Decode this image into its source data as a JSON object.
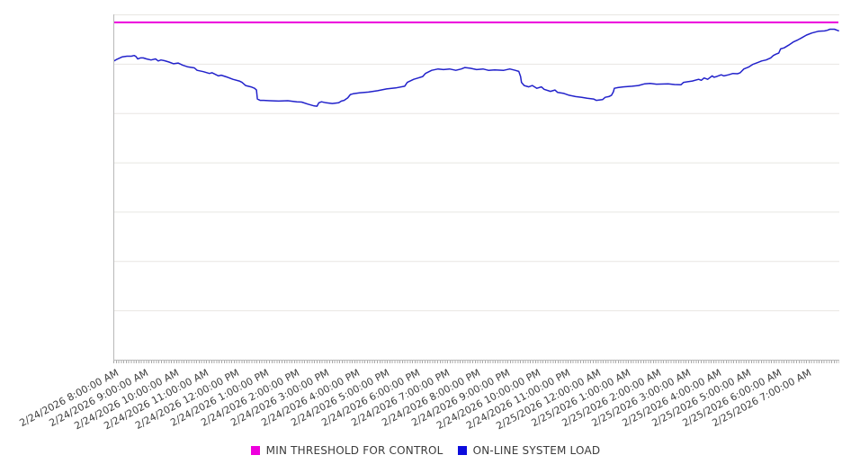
{
  "chart": {
    "background": "#ffffff",
    "grid_color": "#e8e6e2",
    "axis_color": "#b9b9b9",
    "tick_color": "#a8a8a8",
    "label_color": "#3d3d3d",
    "y_axis_labels_visible": false
  },
  "legend": {
    "items": [
      {
        "label": "MIN THRESHOLD FOR CONTROL",
        "color": "#ee00dd"
      },
      {
        "label": "ON-LINE SYSTEM LOAD",
        "color": "#0d0ddd"
      }
    ]
  },
  "chart_data": {
    "type": "line",
    "title": "",
    "xlabel": "",
    "ylabel": "",
    "x_axis_hours_span": 24.1,
    "x_minor_tick_minutes": 5,
    "y_gridline_count": 7,
    "value_unit_note": "no y-axis tick labels are shown in the chart; values are percent of plot height (0 = axis bottom, 100 = plot top)",
    "x_tick_labels": [
      "2/24/2026 8:00:00 AM",
      "2/24/2026 9:00:00 AM",
      "2/24/2026 10:00:00 AM",
      "2/24/2026 11:00:00 AM",
      "2/24/2026 12:00:00 PM",
      "2/24/2026 1:00:00 PM",
      "2/24/2026 2:00:00 PM",
      "2/24/2026 3:00:00 PM",
      "2/24/2026 4:00:00 PM",
      "2/24/2026 5:00:00 PM",
      "2/24/2026 6:00:00 PM",
      "2/24/2026 7:00:00 PM",
      "2/24/2026 8:00:00 PM",
      "2/24/2026 9:00:00 PM",
      "2/24/2026 10:00:00 PM",
      "2/24/2026 11:00:00 PM",
      "2/25/2026 12:00:00 AM",
      "2/25/2026 1:00:00 AM",
      "2/25/2026 2:00:00 AM",
      "2/25/2026 3:00:00 AM",
      "2/25/2026 4:00:00 AM",
      "2/25/2026 5:00:00 AM",
      "2/25/2026 6:00:00 AM",
      "2/25/2026 7:00:00 AM"
    ],
    "series": [
      {
        "name": "MIN THRESHOLD FOR CONTROL",
        "type": "threshold",
        "color": "#ec00dc",
        "value": 97.7
      },
      {
        "name": "ON-LINE SYSTEM LOAD",
        "type": "line",
        "color": "#2222cb",
        "points": [
          [
            0.0,
            86.4
          ],
          [
            0.12,
            87.0
          ],
          [
            0.3,
            87.7
          ],
          [
            0.45,
            87.9
          ],
          [
            0.6,
            87.9
          ],
          [
            0.69,
            88.1
          ],
          [
            0.75,
            87.8
          ],
          [
            0.81,
            87.1
          ],
          [
            0.9,
            87.4
          ],
          [
            0.99,
            87.4
          ],
          [
            1.1,
            87.1
          ],
          [
            1.25,
            86.8
          ],
          [
            1.4,
            87.1
          ],
          [
            1.49,
            86.5
          ],
          [
            1.58,
            86.8
          ],
          [
            1.7,
            86.6
          ],
          [
            1.85,
            86.2
          ],
          [
            2.0,
            85.7
          ],
          [
            2.15,
            85.9
          ],
          [
            2.3,
            85.3
          ],
          [
            2.48,
            84.8
          ],
          [
            2.69,
            84.5
          ],
          [
            2.78,
            83.8
          ],
          [
            2.99,
            83.4
          ],
          [
            3.19,
            82.9
          ],
          [
            3.28,
            83.1
          ],
          [
            3.49,
            82.2
          ],
          [
            3.58,
            82.4
          ],
          [
            3.79,
            81.8
          ],
          [
            3.97,
            81.2
          ],
          [
            4.18,
            80.7
          ],
          [
            4.27,
            80.3
          ],
          [
            4.39,
            79.4
          ],
          [
            4.57,
            79.0
          ],
          [
            4.69,
            78.6
          ],
          [
            4.75,
            78.1
          ],
          [
            4.78,
            75.5
          ],
          [
            4.87,
            75.1
          ],
          [
            4.99,
            75.1
          ],
          [
            5.19,
            75.0
          ],
          [
            5.49,
            74.9
          ],
          [
            5.79,
            75.0
          ],
          [
            6.09,
            74.7
          ],
          [
            6.25,
            74.6
          ],
          [
            6.46,
            74.0
          ],
          [
            6.67,
            73.5
          ],
          [
            6.76,
            73.4
          ],
          [
            6.82,
            74.4
          ],
          [
            6.91,
            74.7
          ],
          [
            7.06,
            74.4
          ],
          [
            7.27,
            74.2
          ],
          [
            7.48,
            74.4
          ],
          [
            7.57,
            74.9
          ],
          [
            7.66,
            75.1
          ],
          [
            7.78,
            75.8
          ],
          [
            7.87,
            76.8
          ],
          [
            7.96,
            77.0
          ],
          [
            8.17,
            77.3
          ],
          [
            8.47,
            77.5
          ],
          [
            8.77,
            77.9
          ],
          [
            9.07,
            78.4
          ],
          [
            9.37,
            78.7
          ],
          [
            9.67,
            79.2
          ],
          [
            9.76,
            80.3
          ],
          [
            9.97,
            81.2
          ],
          [
            10.12,
            81.6
          ],
          [
            10.27,
            82.0
          ],
          [
            10.36,
            82.9
          ],
          [
            10.57,
            83.8
          ],
          [
            10.78,
            84.2
          ],
          [
            10.96,
            84.0
          ],
          [
            11.16,
            84.2
          ],
          [
            11.37,
            83.8
          ],
          [
            11.55,
            84.2
          ],
          [
            11.67,
            84.6
          ],
          [
            11.85,
            84.4
          ],
          [
            12.06,
            84.0
          ],
          [
            12.27,
            84.2
          ],
          [
            12.45,
            83.8
          ],
          [
            12.66,
            83.9
          ],
          [
            12.96,
            83.8
          ],
          [
            13.16,
            84.2
          ],
          [
            13.34,
            83.8
          ],
          [
            13.46,
            83.5
          ],
          [
            13.52,
            82.0
          ],
          [
            13.55,
            80.3
          ],
          [
            13.64,
            79.4
          ],
          [
            13.79,
            79.0
          ],
          [
            13.91,
            79.4
          ],
          [
            14.06,
            78.6
          ],
          [
            14.21,
            79.0
          ],
          [
            14.3,
            78.3
          ],
          [
            14.51,
            77.7
          ],
          [
            14.66,
            78.1
          ],
          [
            14.75,
            77.4
          ],
          [
            14.96,
            77.1
          ],
          [
            15.13,
            76.6
          ],
          [
            15.34,
            76.2
          ],
          [
            15.55,
            76.0
          ],
          [
            15.73,
            75.7
          ],
          [
            15.94,
            75.5
          ],
          [
            16.03,
            75.1
          ],
          [
            16.24,
            75.3
          ],
          [
            16.33,
            76.0
          ],
          [
            16.45,
            76.2
          ],
          [
            16.54,
            76.6
          ],
          [
            16.6,
            77.6
          ],
          [
            16.63,
            78.6
          ],
          [
            16.75,
            78.8
          ],
          [
            16.93,
            79.0
          ],
          [
            17.22,
            79.2
          ],
          [
            17.43,
            79.4
          ],
          [
            17.64,
            79.9
          ],
          [
            17.82,
            80.0
          ],
          [
            18.03,
            79.8
          ],
          [
            18.42,
            79.9
          ],
          [
            18.63,
            79.7
          ],
          [
            18.84,
            79.6
          ],
          [
            18.93,
            80.3
          ],
          [
            19.22,
            80.7
          ],
          [
            19.43,
            81.2
          ],
          [
            19.52,
            80.9
          ],
          [
            19.61,
            81.6
          ],
          [
            19.73,
            81.2
          ],
          [
            19.88,
            82.2
          ],
          [
            19.94,
            81.8
          ],
          [
            20.03,
            82.0
          ],
          [
            20.18,
            82.5
          ],
          [
            20.27,
            82.2
          ],
          [
            20.42,
            82.5
          ],
          [
            20.57,
            82.9
          ],
          [
            20.72,
            82.8
          ],
          [
            20.81,
            83.1
          ],
          [
            20.93,
            84.2
          ],
          [
            21.1,
            84.8
          ],
          [
            21.22,
            85.5
          ],
          [
            21.4,
            86.1
          ],
          [
            21.52,
            86.5
          ],
          [
            21.67,
            86.8
          ],
          [
            21.82,
            87.4
          ],
          [
            21.91,
            88.1
          ],
          [
            22.0,
            88.5
          ],
          [
            22.09,
            88.8
          ],
          [
            22.15,
            90.0
          ],
          [
            22.27,
            90.3
          ],
          [
            22.42,
            91.1
          ],
          [
            22.57,
            92.0
          ],
          [
            22.72,
            92.6
          ],
          [
            22.87,
            93.3
          ],
          [
            23.01,
            94.0
          ],
          [
            23.19,
            94.6
          ],
          [
            23.4,
            95.1
          ],
          [
            23.61,
            95.2
          ],
          [
            23.7,
            95.4
          ],
          [
            23.79,
            95.7
          ],
          [
            23.94,
            95.7
          ],
          [
            24.03,
            95.4
          ],
          [
            24.09,
            95.2
          ]
        ]
      }
    ]
  }
}
